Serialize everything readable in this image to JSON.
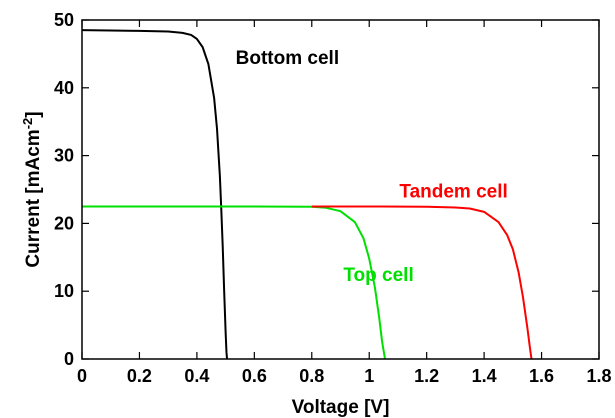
{
  "chart_data": {
    "type": "line",
    "title": "",
    "xlabel": "Voltage [V]",
    "ylabel": {
      "main": "Current [mAcm",
      "sup": "-2",
      "close": "]"
    },
    "xlim": [
      0,
      1.8
    ],
    "ylim": [
      0,
      50
    ],
    "xticks": [
      0,
      0.2,
      0.4,
      0.6,
      0.8,
      1,
      1.2,
      1.4,
      1.6,
      1.8
    ],
    "yticks": [
      0,
      10,
      20,
      30,
      40,
      50
    ],
    "xtick_labels": [
      "0",
      "0.2",
      "0.4",
      "0.6",
      "0.8",
      "1",
      "1.2",
      "1.4",
      "1.6",
      "1.8"
    ],
    "ytick_labels": [
      "0",
      "10",
      "20",
      "30",
      "40",
      "50"
    ],
    "grid": false,
    "legend": "none",
    "series": [
      {
        "name": "Bottom cell",
        "color": "#000000",
        "label_at": [
          0.535,
          43.5
        ],
        "x": [
          0,
          0.1,
          0.2,
          0.3,
          0.35,
          0.38,
          0.4,
          0.42,
          0.44,
          0.46,
          0.47,
          0.48,
          0.485,
          0.49,
          0.495,
          0.5,
          0.503,
          0.505
        ],
        "y": [
          48.5,
          48.45,
          48.4,
          48.3,
          48.1,
          47.8,
          47.2,
          46.0,
          43.5,
          38.5,
          34.0,
          27.0,
          22.0,
          16.5,
          10.0,
          4.0,
          1.0,
          0
        ]
      },
      {
        "name": "Top cell",
        "color": "#00e000",
        "label_at": [
          0.91,
          11.5
        ],
        "x": [
          0,
          0.2,
          0.4,
          0.6,
          0.8,
          0.85,
          0.9,
          0.95,
          0.98,
          1.0,
          1.02,
          1.035,
          1.045,
          1.055
        ],
        "y": [
          22.5,
          22.5,
          22.5,
          22.5,
          22.45,
          22.3,
          21.8,
          20.2,
          17.8,
          14.8,
          10.5,
          6.0,
          2.5,
          0
        ]
      },
      {
        "name": "Tandem cell",
        "color": "#ff0000",
        "label_at": [
          1.105,
          23.8
        ],
        "x": [
          0.8,
          1.0,
          1.2,
          1.3,
          1.35,
          1.4,
          1.45,
          1.48,
          1.5,
          1.52,
          1.535,
          1.55,
          1.56,
          1.565
        ],
        "y": [
          22.5,
          22.5,
          22.45,
          22.35,
          22.2,
          21.7,
          20.2,
          18.3,
          16.2,
          12.8,
          9.2,
          4.8,
          1.5,
          0
        ]
      }
    ]
  }
}
